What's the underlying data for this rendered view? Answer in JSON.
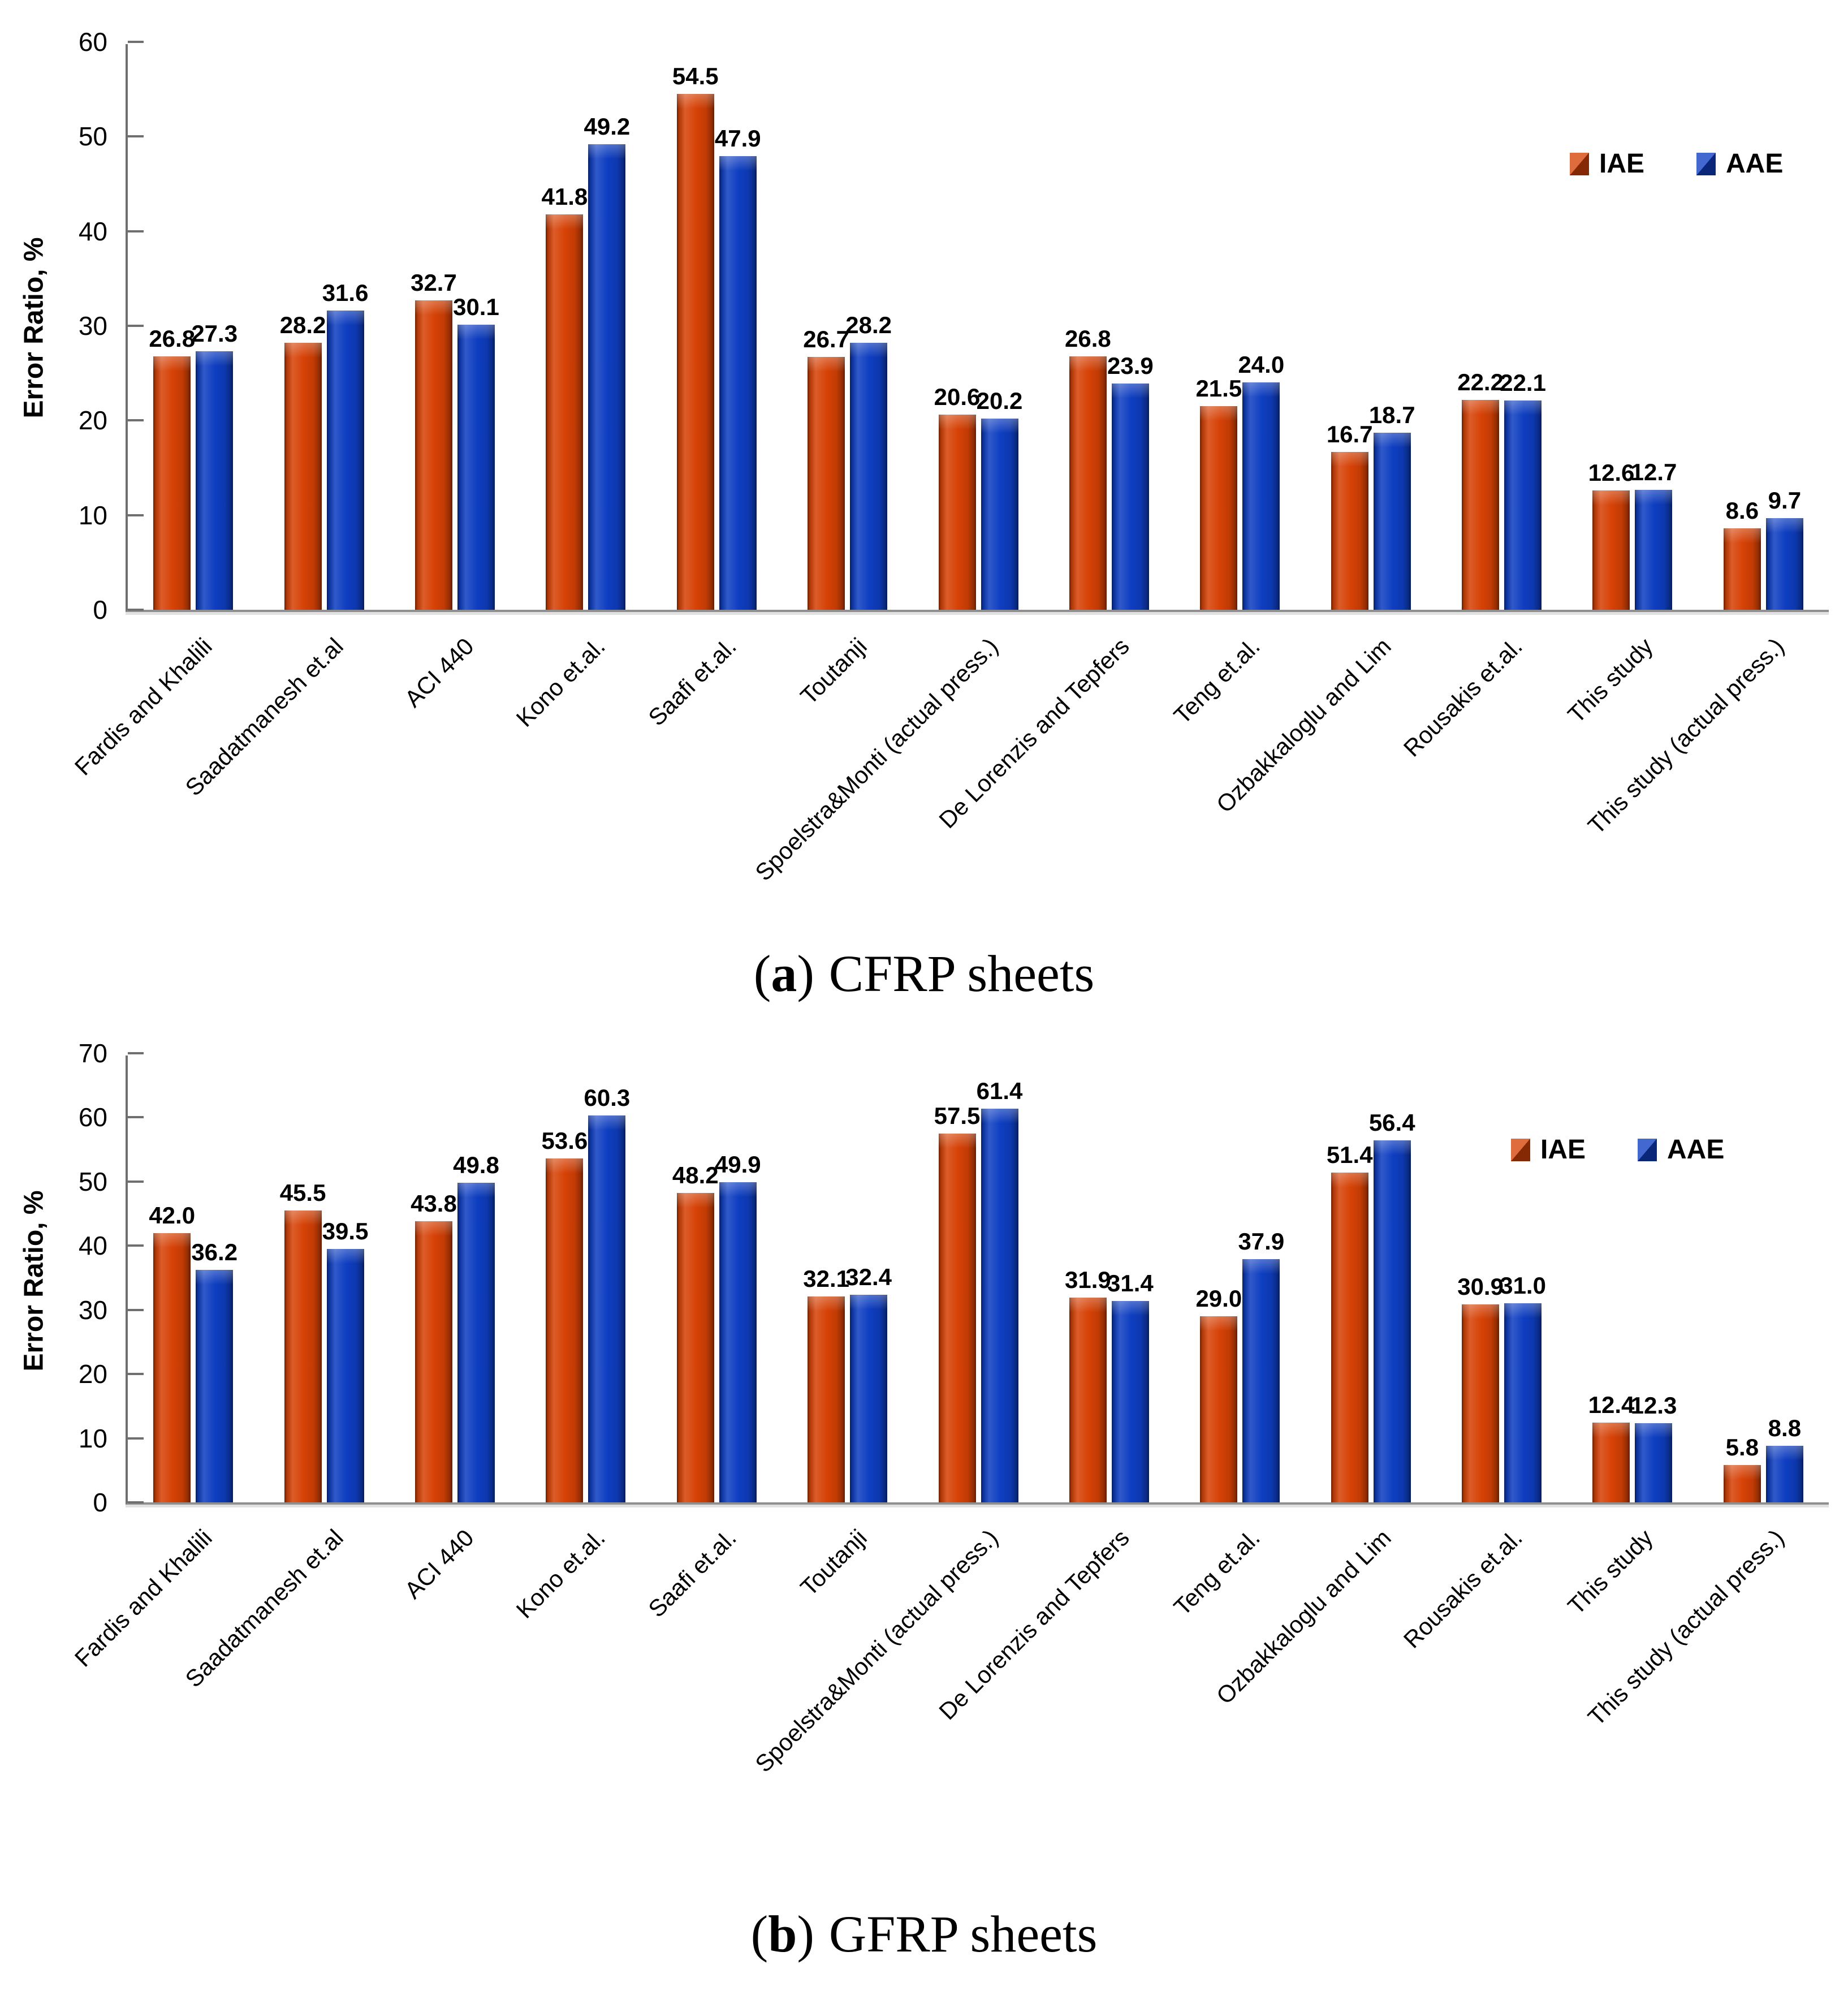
{
  "figure": {
    "type": "grouped-bar-figure",
    "panels": [
      "a",
      "b"
    ]
  },
  "chart_data": [
    {
      "type": "bar",
      "panel": "a",
      "caption": {
        "open": "(",
        "letter": "a",
        "close": ")",
        "text": "CFRP sheets"
      },
      "ylabel": "Error Ratio, %",
      "ylim": [
        0,
        60
      ],
      "ytick_step": 10,
      "grid": false,
      "legend_position": "top-right",
      "categories": [
        "Fardis and Khalili",
        "Saadatmanesh et.al",
        "ACI 440",
        "Kono et.al.",
        "Saafi et.al.",
        "Toutanji",
        "Spoelstra&Monti (actual press.)",
        "De Lorenzis and Tepfers",
        "Teng et.al.",
        "Ozbakkaloglu and Lim",
        "Rousakis et.al.",
        "This study",
        "This study (actual press.)"
      ],
      "series": [
        {
          "name": "IAE",
          "color": "#d64206",
          "values": [
            26.8,
            28.2,
            32.7,
            41.8,
            54.5,
            26.7,
            20.6,
            26.8,
            21.5,
            16.7,
            22.2,
            12.6,
            8.6
          ]
        },
        {
          "name": "AAE",
          "color": "#0e3ec1",
          "values": [
            27.3,
            31.6,
            30.1,
            49.2,
            47.9,
            28.2,
            20.2,
            23.9,
            24.0,
            18.7,
            22.1,
            12.7,
            9.7
          ]
        }
      ]
    },
    {
      "type": "bar",
      "panel": "b",
      "caption": {
        "open": "(",
        "letter": "b",
        "close": ")",
        "text": "GFRP sheets"
      },
      "ylabel": "Error Ratio, %",
      "ylim": [
        0,
        70
      ],
      "ytick_step": 10,
      "grid": false,
      "legend_position": "top-right",
      "categories": [
        "Fardis and Khalili",
        "Saadatmanesh et.al",
        "ACI 440",
        "Kono et.al.",
        "Saafi et.al.",
        "Toutanji",
        "Spoelstra&Monti (actual press.)",
        "De Lorenzis and Tepfers",
        "Teng et.al.",
        "Ozbakkaloglu and Lim",
        "Rousakis et.al.",
        "This study",
        "This study (actual press.)"
      ],
      "series": [
        {
          "name": "IAE",
          "color": "#d64206",
          "values": [
            42.0,
            45.5,
            43.8,
            53.6,
            48.2,
            32.1,
            57.5,
            31.9,
            29.0,
            51.4,
            30.9,
            12.4,
            5.8
          ]
        },
        {
          "name": "AAE",
          "color": "#0e3ec1",
          "values": [
            36.2,
            39.5,
            49.8,
            60.3,
            49.9,
            32.4,
            61.4,
            31.4,
            37.9,
            56.4,
            31.0,
            12.3,
            8.8
          ]
        }
      ]
    }
  ]
}
